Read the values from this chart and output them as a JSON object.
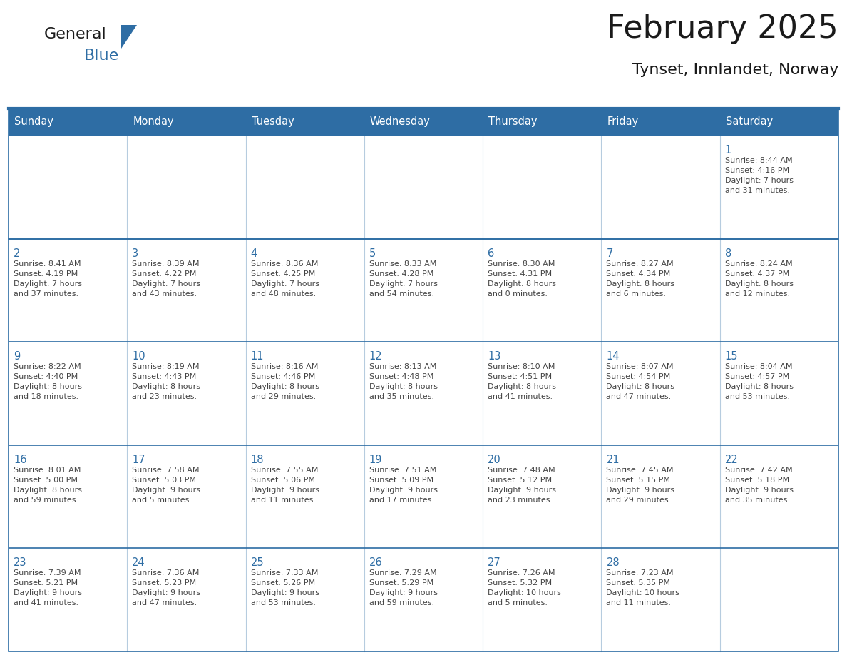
{
  "title": "February 2025",
  "subtitle": "Tynset, Innlandet, Norway",
  "header_bg": "#2E6DA4",
  "header_text_color": "#FFFFFF",
  "cell_bg_white": "#FFFFFF",
  "cell_bg_gray": "#F2F2F2",
  "border_color": "#2E6DA4",
  "border_color_light": "#4a7fb5",
  "text_color": "#444444",
  "day_number_color": "#2E6DA4",
  "day_headers": [
    "Sunday",
    "Monday",
    "Tuesday",
    "Wednesday",
    "Thursday",
    "Friday",
    "Saturday"
  ],
  "weeks": [
    [
      {
        "day": "",
        "info": ""
      },
      {
        "day": "",
        "info": ""
      },
      {
        "day": "",
        "info": ""
      },
      {
        "day": "",
        "info": ""
      },
      {
        "day": "",
        "info": ""
      },
      {
        "day": "",
        "info": ""
      },
      {
        "day": "1",
        "info": "Sunrise: 8:44 AM\nSunset: 4:16 PM\nDaylight: 7 hours\nand 31 minutes."
      }
    ],
    [
      {
        "day": "2",
        "info": "Sunrise: 8:41 AM\nSunset: 4:19 PM\nDaylight: 7 hours\nand 37 minutes."
      },
      {
        "day": "3",
        "info": "Sunrise: 8:39 AM\nSunset: 4:22 PM\nDaylight: 7 hours\nand 43 minutes."
      },
      {
        "day": "4",
        "info": "Sunrise: 8:36 AM\nSunset: 4:25 PM\nDaylight: 7 hours\nand 48 minutes."
      },
      {
        "day": "5",
        "info": "Sunrise: 8:33 AM\nSunset: 4:28 PM\nDaylight: 7 hours\nand 54 minutes."
      },
      {
        "day": "6",
        "info": "Sunrise: 8:30 AM\nSunset: 4:31 PM\nDaylight: 8 hours\nand 0 minutes."
      },
      {
        "day": "7",
        "info": "Sunrise: 8:27 AM\nSunset: 4:34 PM\nDaylight: 8 hours\nand 6 minutes."
      },
      {
        "day": "8",
        "info": "Sunrise: 8:24 AM\nSunset: 4:37 PM\nDaylight: 8 hours\nand 12 minutes."
      }
    ],
    [
      {
        "day": "9",
        "info": "Sunrise: 8:22 AM\nSunset: 4:40 PM\nDaylight: 8 hours\nand 18 minutes."
      },
      {
        "day": "10",
        "info": "Sunrise: 8:19 AM\nSunset: 4:43 PM\nDaylight: 8 hours\nand 23 minutes."
      },
      {
        "day": "11",
        "info": "Sunrise: 8:16 AM\nSunset: 4:46 PM\nDaylight: 8 hours\nand 29 minutes."
      },
      {
        "day": "12",
        "info": "Sunrise: 8:13 AM\nSunset: 4:48 PM\nDaylight: 8 hours\nand 35 minutes."
      },
      {
        "day": "13",
        "info": "Sunrise: 8:10 AM\nSunset: 4:51 PM\nDaylight: 8 hours\nand 41 minutes."
      },
      {
        "day": "14",
        "info": "Sunrise: 8:07 AM\nSunset: 4:54 PM\nDaylight: 8 hours\nand 47 minutes."
      },
      {
        "day": "15",
        "info": "Sunrise: 8:04 AM\nSunset: 4:57 PM\nDaylight: 8 hours\nand 53 minutes."
      }
    ],
    [
      {
        "day": "16",
        "info": "Sunrise: 8:01 AM\nSunset: 5:00 PM\nDaylight: 8 hours\nand 59 minutes."
      },
      {
        "day": "17",
        "info": "Sunrise: 7:58 AM\nSunset: 5:03 PM\nDaylight: 9 hours\nand 5 minutes."
      },
      {
        "day": "18",
        "info": "Sunrise: 7:55 AM\nSunset: 5:06 PM\nDaylight: 9 hours\nand 11 minutes."
      },
      {
        "day": "19",
        "info": "Sunrise: 7:51 AM\nSunset: 5:09 PM\nDaylight: 9 hours\nand 17 minutes."
      },
      {
        "day": "20",
        "info": "Sunrise: 7:48 AM\nSunset: 5:12 PM\nDaylight: 9 hours\nand 23 minutes."
      },
      {
        "day": "21",
        "info": "Sunrise: 7:45 AM\nSunset: 5:15 PM\nDaylight: 9 hours\nand 29 minutes."
      },
      {
        "day": "22",
        "info": "Sunrise: 7:42 AM\nSunset: 5:18 PM\nDaylight: 9 hours\nand 35 minutes."
      }
    ],
    [
      {
        "day": "23",
        "info": "Sunrise: 7:39 AM\nSunset: 5:21 PM\nDaylight: 9 hours\nand 41 minutes."
      },
      {
        "day": "24",
        "info": "Sunrise: 7:36 AM\nSunset: 5:23 PM\nDaylight: 9 hours\nand 47 minutes."
      },
      {
        "day": "25",
        "info": "Sunrise: 7:33 AM\nSunset: 5:26 PM\nDaylight: 9 hours\nand 53 minutes."
      },
      {
        "day": "26",
        "info": "Sunrise: 7:29 AM\nSunset: 5:29 PM\nDaylight: 9 hours\nand 59 minutes."
      },
      {
        "day": "27",
        "info": "Sunrise: 7:26 AM\nSunset: 5:32 PM\nDaylight: 10 hours\nand 5 minutes."
      },
      {
        "day": "28",
        "info": "Sunrise: 7:23 AM\nSunset: 5:35 PM\nDaylight: 10 hours\nand 11 minutes."
      },
      {
        "day": "",
        "info": ""
      }
    ]
  ],
  "logo_text1": "General",
  "logo_text2": "Blue",
  "logo_color1": "#1a1a1a",
  "logo_color2": "#2E6DA4",
  "logo_triangle_color": "#2E6DA4",
  "figsize": [
    11.88,
    9.18
  ],
  "dpi": 100
}
